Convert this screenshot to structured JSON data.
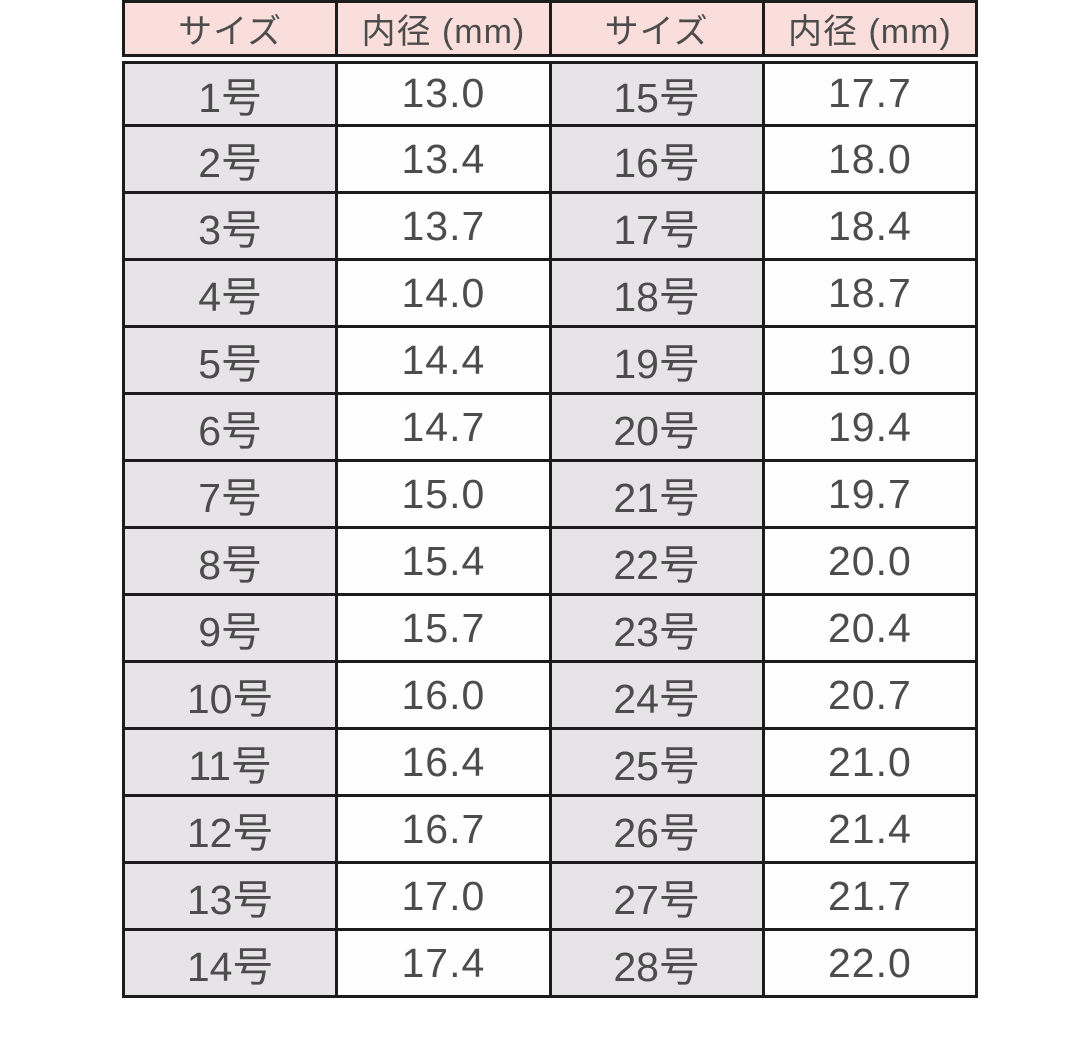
{
  "colors": {
    "header-bg": "#fadedb",
    "size-bg": "#e6e4e6",
    "value-bg": "#fefefe",
    "border": "#1c1c1c",
    "text": "#4c4c4c",
    "page-bg": "#ffffff"
  },
  "chart_data": {
    "type": "table",
    "columns": [
      "サイズ",
      "内径 (mm)",
      "サイズ",
      "内径 (mm)"
    ],
    "rows": [
      [
        "1号",
        "13.0",
        "15号",
        "17.7"
      ],
      [
        "2号",
        "13.4",
        "16号",
        "18.0"
      ],
      [
        "3号",
        "13.7",
        "17号",
        "18.4"
      ],
      [
        "4号",
        "14.0",
        "18号",
        "18.7"
      ],
      [
        "5号",
        "14.4",
        "19号",
        "19.0"
      ],
      [
        "6号",
        "14.7",
        "20号",
        "19.4"
      ],
      [
        "7号",
        "15.0",
        "21号",
        "19.7"
      ],
      [
        "8号",
        "15.4",
        "22号",
        "20.0"
      ],
      [
        "9号",
        "15.7",
        "23号",
        "20.4"
      ],
      [
        "10号",
        "16.0",
        "24号",
        "20.7"
      ],
      [
        "11号",
        "16.4",
        "25号",
        "21.0"
      ],
      [
        "12号",
        "16.7",
        "26号",
        "21.4"
      ],
      [
        "13号",
        "17.0",
        "27号",
        "21.7"
      ],
      [
        "14号",
        "17.4",
        "28号",
        "22.0"
      ]
    ]
  }
}
